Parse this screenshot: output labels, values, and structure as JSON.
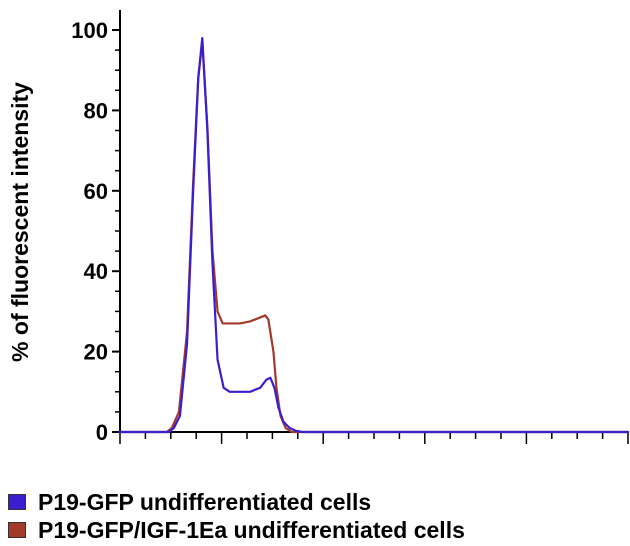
{
  "chart_data": {
    "type": "line",
    "title": "",
    "xlabel": "",
    "ylabel": "% of fluorescent intensity",
    "ylim": [
      0,
      100
    ],
    "yticks": [
      "0",
      "20",
      "40",
      "60",
      "80",
      "100"
    ],
    "xlim": [
      0,
      100
    ],
    "x_minor_tick_count": 20,
    "grid": false,
    "legend_placement": "bottom-left",
    "series": [
      {
        "name": "P19-GFP/IGF-1Ea undifferentiated cells",
        "color": "#a23a2c",
        "x": [
          0,
          9.2,
          10.2,
          11.6,
          13.2,
          14.4,
          15.4,
          16.2,
          17.2,
          18.2,
          19.2,
          20.2,
          21.6,
          23.6,
          25.6,
          27.6,
          28.6,
          29.2,
          30.2,
          30.8,
          31.6,
          32.6,
          33.8,
          35.2,
          100
        ],
        "y": [
          0,
          0,
          1,
          5,
          25,
          62,
          88,
          97,
          76,
          45,
          30,
          27,
          27,
          27,
          27.5,
          28.5,
          29,
          28,
          20,
          11,
          4,
          1,
          0,
          0,
          0
        ]
      },
      {
        "name": "P19-GFP undifferentiated cells",
        "color": "#3a1fd0",
        "x": [
          0,
          9.6,
          10.6,
          11.8,
          13.2,
          14.4,
          15.4,
          16.2,
          17.2,
          18.2,
          19.2,
          20.4,
          21.6,
          23.6,
          25.6,
          27.6,
          28.8,
          29.6,
          30.4,
          31.2,
          32.2,
          33.4,
          34.6,
          36,
          100
        ],
        "y": [
          0,
          0,
          1,
          4,
          22,
          60,
          88,
          98,
          75,
          42,
          18,
          11,
          10,
          10,
          10,
          11,
          13,
          13.5,
          11,
          6,
          2.5,
          1,
          0.3,
          0,
          0
        ]
      }
    ]
  },
  "legend": {
    "items": [
      {
        "label": "P19-GFP undifferentiated cells",
        "color": "#3a1fd0"
      },
      {
        "label": "P19-GFP/IGF-1Ea undifferentiated cells",
        "color": "#a23a2c"
      }
    ]
  }
}
